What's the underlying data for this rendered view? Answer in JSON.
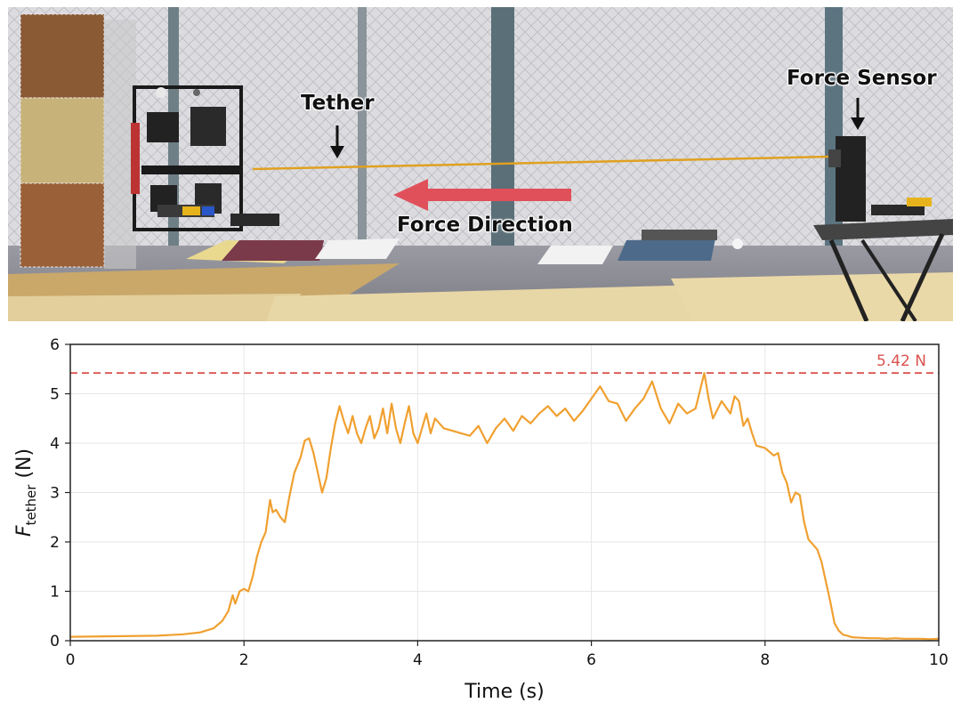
{
  "photo": {
    "labels": {
      "tether": "Tether",
      "force_sensor": "Force Sensor",
      "force_direction": "Force Direction"
    },
    "colors": {
      "arrow": "#e0505a",
      "tether_line": "#e0a020",
      "net_background": "#d9d9dc"
    }
  },
  "chart_data": {
    "type": "line",
    "xlabel": "Time (s)",
    "ylabel_main": "F",
    "ylabel_sub": "tether",
    "ylabel_unit": " (N)",
    "xlim": [
      0,
      10
    ],
    "ylim": [
      0,
      6
    ],
    "xticks": [
      0,
      2,
      4,
      6,
      8,
      10
    ],
    "yticks": [
      0,
      1,
      2,
      3,
      4,
      5,
      6
    ],
    "grid": true,
    "series": [
      {
        "color": "#f0a030",
        "x": [
          0,
          0.5,
          1.0,
          1.3,
          1.5,
          1.65,
          1.75,
          1.82,
          1.87,
          1.9,
          1.95,
          2.0,
          2.05,
          2.1,
          2.15,
          2.2,
          2.25,
          2.3,
          2.33,
          2.37,
          2.42,
          2.47,
          2.52,
          2.58,
          2.65,
          2.7,
          2.75,
          2.8,
          2.85,
          2.9,
          2.95,
          3.0,
          3.05,
          3.1,
          3.15,
          3.2,
          3.25,
          3.3,
          3.35,
          3.4,
          3.45,
          3.5,
          3.55,
          3.6,
          3.65,
          3.7,
          3.75,
          3.8,
          3.85,
          3.9,
          3.95,
          4.0,
          4.05,
          4.1,
          4.15,
          4.2,
          4.3,
          4.4,
          4.5,
          4.6,
          4.7,
          4.8,
          4.9,
          5.0,
          5.1,
          5.2,
          5.3,
          5.4,
          5.5,
          5.6,
          5.7,
          5.8,
          5.9,
          6.0,
          6.1,
          6.2,
          6.3,
          6.4,
          6.5,
          6.6,
          6.7,
          6.8,
          6.9,
          7.0,
          7.1,
          7.2,
          7.3,
          7.35,
          7.4,
          7.5,
          7.6,
          7.65,
          7.7,
          7.75,
          7.8,
          7.85,
          7.9,
          8.0,
          8.1,
          8.15,
          8.2,
          8.25,
          8.3,
          8.35,
          8.4,
          8.45,
          8.5,
          8.55,
          8.6,
          8.65,
          8.7,
          8.75,
          8.8,
          8.85,
          8.9,
          8.95,
          9.0,
          9.1,
          9.2,
          9.3,
          9.4,
          9.5,
          9.6,
          9.7,
          9.8,
          9.9,
          10.0
        ],
        "y": [
          0.08,
          0.09,
          0.1,
          0.13,
          0.17,
          0.25,
          0.4,
          0.6,
          0.92,
          0.75,
          1.0,
          1.05,
          1.0,
          1.3,
          1.7,
          2.0,
          2.2,
          2.85,
          2.6,
          2.65,
          2.5,
          2.4,
          2.9,
          3.4,
          3.7,
          4.05,
          4.1,
          3.8,
          3.4,
          3.0,
          3.3,
          3.9,
          4.4,
          4.75,
          4.45,
          4.2,
          4.55,
          4.2,
          4.0,
          4.3,
          4.55,
          4.1,
          4.3,
          4.7,
          4.2,
          4.8,
          4.3,
          4.0,
          4.4,
          4.75,
          4.2,
          4.0,
          4.3,
          4.6,
          4.2,
          4.5,
          4.3,
          4.25,
          4.2,
          4.15,
          4.35,
          4.0,
          4.3,
          4.5,
          4.25,
          4.55,
          4.4,
          4.6,
          4.75,
          4.55,
          4.7,
          4.45,
          4.65,
          4.9,
          5.15,
          4.85,
          4.8,
          4.45,
          4.7,
          4.9,
          5.25,
          4.7,
          4.4,
          4.8,
          4.6,
          4.7,
          5.42,
          4.9,
          4.5,
          4.85,
          4.6,
          4.95,
          4.85,
          4.35,
          4.5,
          4.2,
          3.95,
          3.9,
          3.75,
          3.8,
          3.4,
          3.2,
          2.8,
          3.0,
          2.95,
          2.4,
          2.05,
          1.95,
          1.85,
          1.6,
          1.2,
          0.8,
          0.35,
          0.2,
          0.12,
          0.1,
          0.07,
          0.06,
          0.05,
          0.05,
          0.04,
          0.05,
          0.04,
          0.04,
          0.04,
          0.03,
          0.04
        ]
      }
    ],
    "reference_line": {
      "y": 5.42,
      "label": "5.42 N",
      "color": "#d9534f",
      "style": "dashed"
    }
  }
}
